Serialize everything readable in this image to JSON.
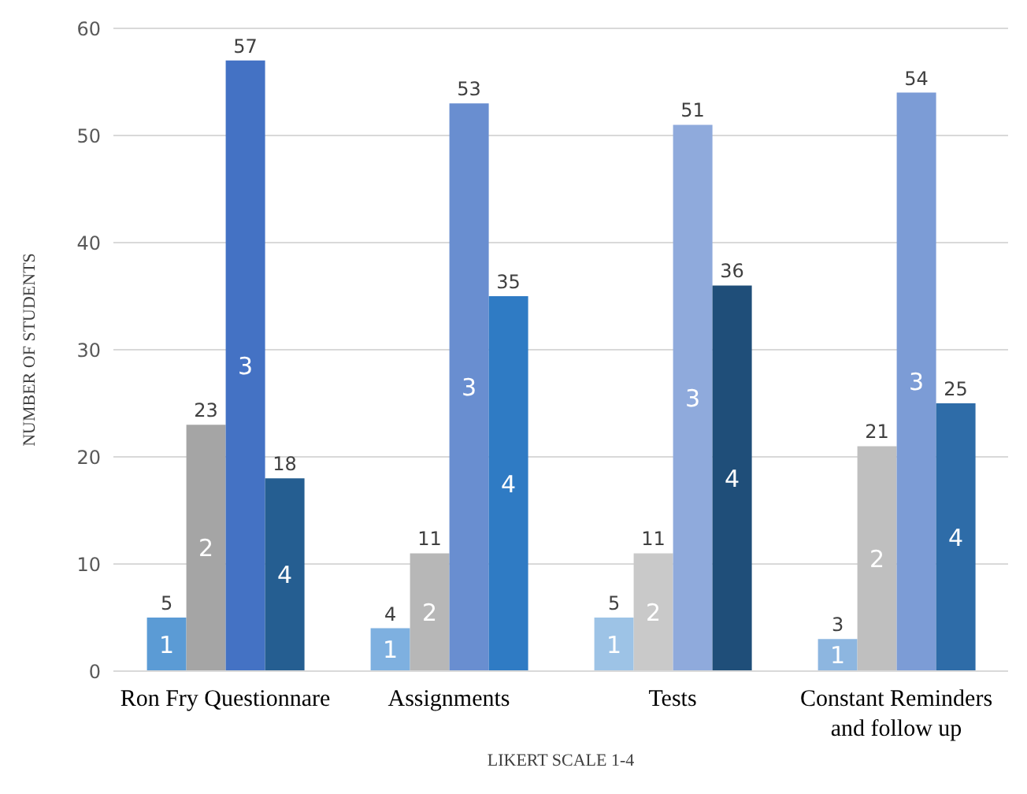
{
  "chart_data": {
    "type": "bar",
    "xlabel": "LIKERT SCALE 1-4",
    "ylabel": "NUMBER OF STUDENTS",
    "categories": [
      "Ron Fry Questionnare",
      "Assignments",
      "Tests",
      "Constant Reminders and follow up"
    ],
    "series": [
      {
        "name": "1",
        "colors": [
          "#5b9bd5",
          "#7eb0e0",
          "#9dc3e6",
          "#8db6e0"
        ],
        "values": [
          5,
          4,
          5,
          3
        ]
      },
      {
        "name": "2",
        "colors": [
          "#a5a5a5",
          "#b7b7b7",
          "#c9c9c9",
          "#bfbfbf"
        ],
        "values": [
          23,
          11,
          11,
          21
        ]
      },
      {
        "name": "3",
        "colors": [
          "#4472c4",
          "#698ed0",
          "#8faadc",
          "#7c9cd6"
        ],
        "values": [
          57,
          53,
          51,
          54
        ]
      },
      {
        "name": "4",
        "colors": [
          "#255e91",
          "#2f7bc4",
          "#1f4e79",
          "#2e6ca8"
        ],
        "values": [
          18,
          35,
          36,
          25
        ]
      }
    ],
    "ylim": [
      0,
      60
    ],
    "yticks": [
      0,
      10,
      20,
      30,
      40,
      50,
      60
    ],
    "grid": "y",
    "data_labels": true
  }
}
